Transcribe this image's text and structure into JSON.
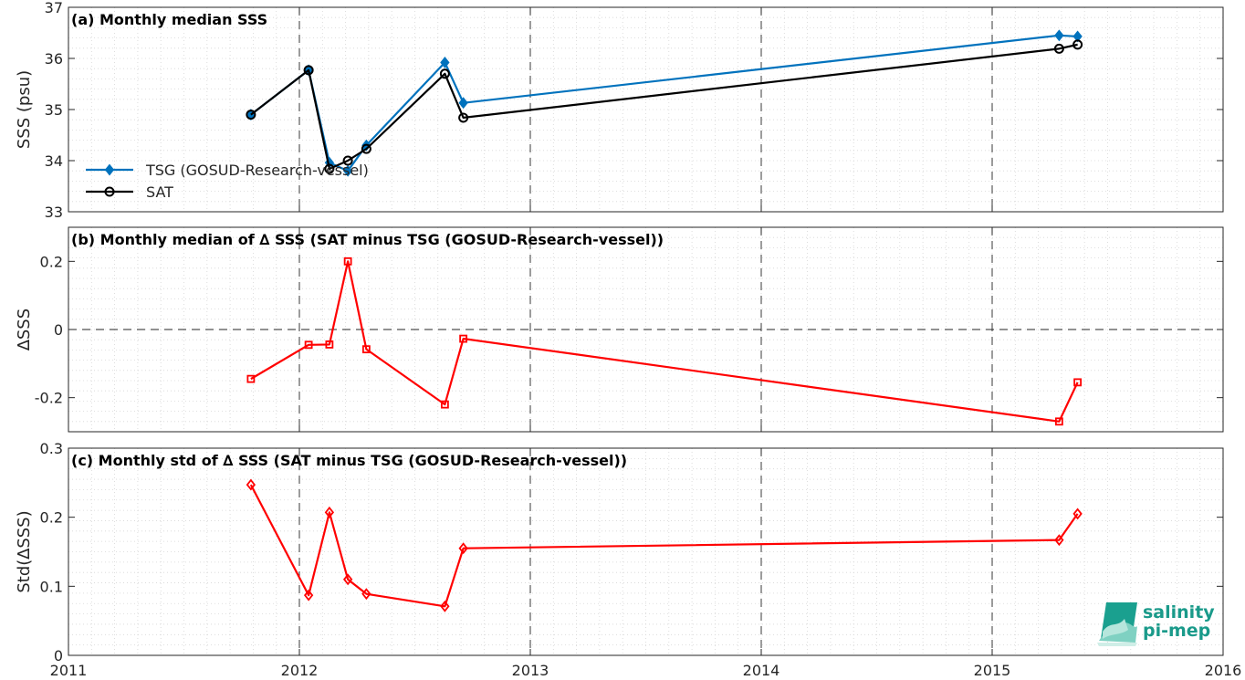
{
  "chart_data": [
    {
      "type": "line",
      "title": "(a) Monthly median SSS",
      "ylabel": "SSS (psu)",
      "xlim": [
        2011,
        2016
      ],
      "ylim": [
        33,
        37
      ],
      "yticks": [
        "33",
        "34",
        "35",
        "36",
        "37"
      ],
      "grid": true,
      "legend_position": "bottom-left",
      "series": [
        {
          "name": "TSG (GOSUD-Research-vessel)",
          "color": "#0072BD",
          "marker": "diamond",
          "points": [
            [
              2011.79,
              34.9
            ],
            [
              2012.04,
              35.77
            ],
            [
              2012.13,
              33.96
            ],
            [
              2012.21,
              33.8
            ],
            [
              2012.29,
              34.3
            ],
            [
              2012.63,
              35.92
            ],
            [
              2012.71,
              35.13
            ],
            [
              2015.29,
              36.45
            ],
            [
              2015.37,
              36.43
            ]
          ]
        },
        {
          "name": "SAT",
          "color": "#000000",
          "marker": "circle",
          "points": [
            [
              2011.79,
              34.9
            ],
            [
              2012.04,
              35.77
            ],
            [
              2012.13,
              33.84
            ],
            [
              2012.21,
              34.0
            ],
            [
              2012.29,
              34.23
            ],
            [
              2012.63,
              35.7
            ],
            [
              2012.71,
              34.84
            ],
            [
              2015.29,
              36.19
            ],
            [
              2015.37,
              36.27
            ]
          ]
        }
      ]
    },
    {
      "type": "line",
      "title": "(b) Monthly median of ∆ SSS (SAT minus TSG (GOSUD-Research-vessel))",
      "ylabel": "∆SSS",
      "xlim": [
        2011,
        2016
      ],
      "ylim": [
        -0.3,
        0.3
      ],
      "yticks": [
        "-0.2",
        "0",
        "0.2"
      ],
      "grid": true,
      "zero_line": true,
      "series": [
        {
          "color": "#FF0000",
          "marker": "square",
          "points": [
            [
              2011.79,
              -0.145
            ],
            [
              2012.04,
              -0.045
            ],
            [
              2012.13,
              -0.044
            ],
            [
              2012.21,
              0.2
            ],
            [
              2012.29,
              -0.058
            ],
            [
              2012.63,
              -0.22
            ],
            [
              2012.71,
              -0.027
            ],
            [
              2015.29,
              -0.27
            ],
            [
              2015.37,
              -0.155
            ]
          ]
        }
      ]
    },
    {
      "type": "line",
      "title": "(c) Monthly std of ∆ SSS (SAT minus TSG (GOSUD-Research-vessel))",
      "ylabel": "Std(∆SSS)",
      "xlim": [
        2011,
        2016
      ],
      "ylim": [
        0,
        0.3
      ],
      "yticks": [
        "0",
        "0.1",
        "0.2",
        "0.3"
      ],
      "xticks": [
        "2011",
        "2012",
        "2013",
        "2014",
        "2015",
        "2016"
      ],
      "grid": true,
      "series": [
        {
          "color": "#FF0000",
          "marker": "diamond",
          "points": [
            [
              2011.79,
              0.247
            ],
            [
              2012.04,
              0.087
            ],
            [
              2012.13,
              0.207
            ],
            [
              2012.21,
              0.11
            ],
            [
              2012.29,
              0.089
            ],
            [
              2012.63,
              0.071
            ],
            [
              2012.71,
              0.155
            ],
            [
              2015.29,
              0.167
            ],
            [
              2015.37,
              0.205
            ]
          ]
        }
      ]
    }
  ],
  "logo": {
    "line1": "salinity",
    "line2": "pi-mep"
  }
}
